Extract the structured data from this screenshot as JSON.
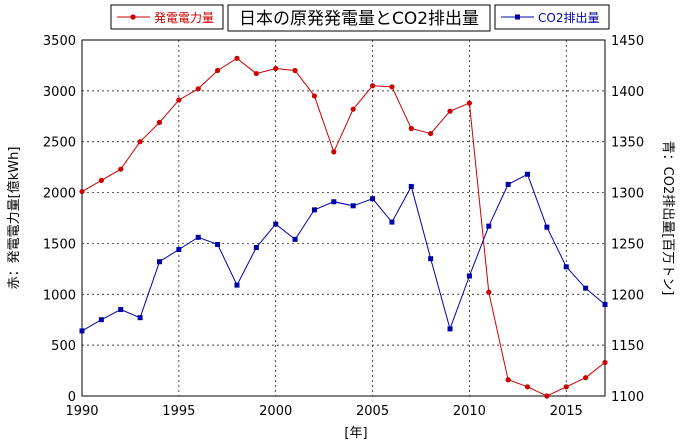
{
  "chart_data": {
    "type": "line",
    "title": "日本の原発発電量とCO2排出量",
    "xlabel": "[年]",
    "ylabel_left": "赤：発電電力量[億kWh]",
    "ylabel_right": "青：CO2排出量[百万トン]",
    "xlim": [
      1990,
      2017
    ],
    "x_ticks": [
      1990,
      1995,
      2000,
      2005,
      2010,
      2015
    ],
    "ylim_left": [
      0,
      3500
    ],
    "y_ticks_left": [
      0,
      500,
      1000,
      1500,
      2000,
      2500,
      3000,
      3500
    ],
    "ylim_right": [
      1100,
      1450
    ],
    "y_ticks_right": [
      1100,
      1150,
      1200,
      1250,
      1300,
      1350,
      1400,
      1450
    ],
    "grid": true,
    "legend_placement": "top, flanking title",
    "x": [
      1990,
      1991,
      1992,
      1993,
      1994,
      1995,
      1996,
      1997,
      1998,
      1999,
      2000,
      2001,
      2002,
      2003,
      2004,
      2005,
      2006,
      2007,
      2008,
      2009,
      2010,
      2011,
      2012,
      2013,
      2014,
      2015,
      2016,
      2017
    ],
    "series": [
      {
        "name": "発電電力量",
        "axis": "left",
        "color": "#cc0000",
        "marker": "circle",
        "values": [
          2010,
          2120,
          2230,
          2500,
          2690,
          2910,
          3020,
          3200,
          3320,
          3170,
          3220,
          3200,
          2950,
          2400,
          2820,
          3050,
          3040,
          2630,
          2580,
          2800,
          2880,
          1020,
          160,
          90,
          0,
          90,
          180,
          330
        ]
      },
      {
        "name": "CO2排出量",
        "axis": "right",
        "color": "#0000aa",
        "marker": "square",
        "values": [
          1164,
          1175,
          1185,
          1177,
          1232,
          1244,
          1256,
          1249,
          1209,
          1246,
          1269,
          1254,
          1283,
          1291,
          1287,
          1294,
          1271,
          1306,
          1235,
          1166,
          1218,
          1267,
          1308,
          1318,
          1266,
          1227,
          1206,
          1190
        ]
      }
    ]
  }
}
